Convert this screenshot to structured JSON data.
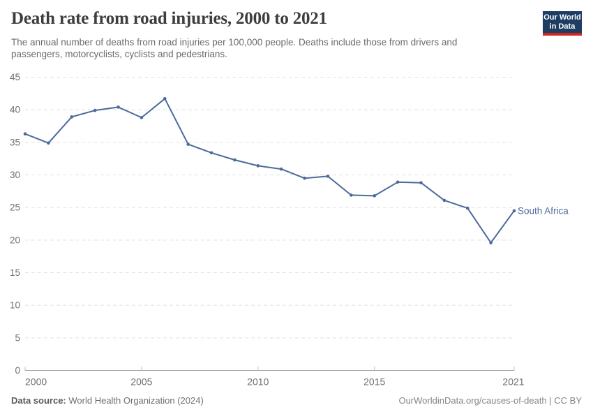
{
  "header": {
    "title": "Death rate from road injuries, 2000 to 2021",
    "subtitle": "The annual number of deaths from road injuries per 100,000 people. Deaths include those from drivers and passengers, motorcyclists, cyclists and pedestrians.",
    "logo": {
      "line1": "Our World",
      "line2": "in Data"
    }
  },
  "chart_data": {
    "type": "line",
    "title": "Death rate from road injuries, 2000 to 2021",
    "x": [
      2000,
      2001,
      2002,
      2003,
      2004,
      2005,
      2006,
      2007,
      2008,
      2009,
      2010,
      2011,
      2012,
      2013,
      2014,
      2015,
      2016,
      2017,
      2018,
      2019,
      2020,
      2021
    ],
    "series": [
      {
        "name": "South Africa",
        "color": "#4c6a9c",
        "values": [
          36.3,
          34.9,
          38.9,
          39.9,
          40.4,
          38.8,
          41.7,
          34.7,
          33.4,
          32.3,
          31.4,
          30.9,
          29.5,
          29.8,
          26.9,
          26.8,
          28.9,
          28.8,
          26.1,
          24.9,
          19.6,
          24.5
        ]
      }
    ],
    "xlabel": "",
    "ylabel": "",
    "ylim": [
      0,
      45
    ],
    "yticks": [
      0,
      5,
      10,
      15,
      20,
      25,
      30,
      35,
      40,
      45
    ],
    "xticks": [
      2000,
      2005,
      2010,
      2015,
      2021
    ],
    "grid": "horizontal-dashed",
    "legend": "end-of-line-label"
  },
  "footer": {
    "datasource_label": "Data source:",
    "datasource_value": "World Health Organization (2024)",
    "link": "OurWorldinData.org/causes-of-death | CC BY"
  },
  "colors": {
    "line": "#4c6a9c",
    "grid": "#e0e0e0",
    "axis": "#a8a8a8",
    "tick": "#bdbdbd",
    "tick_text": "#6e6e6e",
    "logo_bg": "#1d3d63",
    "logo_red": "#cf2620"
  }
}
